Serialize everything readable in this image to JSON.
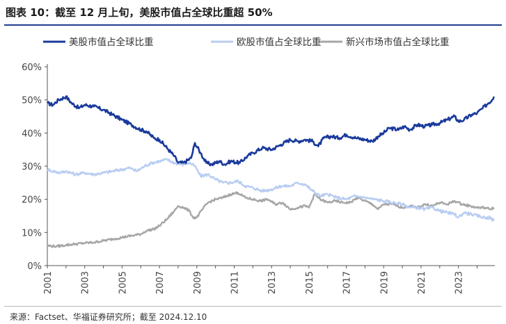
{
  "header": {
    "title": "图表 10：截至 12 月上旬，美股市值占全球比重超 50%"
  },
  "footer": {
    "source": "来源：Factset、华福证券研究所；截至 2024.12.10"
  },
  "colors": {
    "us": "#1a3a9c",
    "eu": "#b9cdf2",
    "em": "#a6a6a6",
    "accent": "#1f3b8f"
  },
  "chart_data": {
    "type": "line",
    "title": "",
    "xlabel": "",
    "ylabel": "",
    "xlim": [
      2001.0,
      2024.95
    ],
    "ylim": [
      0,
      60
    ],
    "y_ticks": [
      "0%",
      "10%",
      "20%",
      "30%",
      "40%",
      "50%",
      "60%"
    ],
    "x_ticks": [
      "2001",
      "2003",
      "2005",
      "2007",
      "2009",
      "2011",
      "2013",
      "2015",
      "2017",
      "2019",
      "2021",
      "2023"
    ],
    "grid": false,
    "legend_position": "top",
    "series": [
      {
        "name": "美股市值占全球比重",
        "color": "#1a3a9c",
        "points": [
          [
            2001.0,
            49
          ],
          [
            2001.3,
            48.5
          ],
          [
            2001.6,
            50
          ],
          [
            2002.0,
            51
          ],
          [
            2002.3,
            49
          ],
          [
            2002.7,
            47.5
          ],
          [
            2003.0,
            48.5
          ],
          [
            2003.5,
            48
          ],
          [
            2004.0,
            47
          ],
          [
            2004.5,
            45.5
          ],
          [
            2005.0,
            44
          ],
          [
            2005.5,
            42.5
          ],
          [
            2006.0,
            41
          ],
          [
            2006.3,
            40.5
          ],
          [
            2006.7,
            38.5
          ],
          [
            2007.0,
            38
          ],
          [
            2007.4,
            35.5
          ],
          [
            2007.8,
            33
          ],
          [
            2008.0,
            31
          ],
          [
            2008.3,
            31
          ],
          [
            2008.7,
            32.5
          ],
          [
            2008.9,
            37
          ],
          [
            2009.2,
            34
          ],
          [
            2009.5,
            31
          ],
          [
            2009.8,
            30.5
          ],
          [
            2010.2,
            31.5
          ],
          [
            2010.5,
            30.5
          ],
          [
            2010.8,
            31.5
          ],
          [
            2011.3,
            31
          ],
          [
            2011.7,
            33
          ],
          [
            2012.0,
            34
          ],
          [
            2012.5,
            35.5
          ],
          [
            2013.0,
            35
          ],
          [
            2013.5,
            36.5
          ],
          [
            2014.0,
            38
          ],
          [
            2014.4,
            37.5
          ],
          [
            2014.8,
            38
          ],
          [
            2015.2,
            37.5
          ],
          [
            2015.5,
            36
          ],
          [
            2015.8,
            38.5
          ],
          [
            2016.2,
            39
          ],
          [
            2016.6,
            38.5
          ],
          [
            2017.0,
            39.5
          ],
          [
            2017.5,
            38.5
          ],
          [
            2018.0,
            38
          ],
          [
            2018.4,
            37.5
          ],
          [
            2018.7,
            39
          ],
          [
            2019.0,
            40
          ],
          [
            2019.3,
            41.5
          ],
          [
            2019.8,
            41
          ],
          [
            2020.1,
            42
          ],
          [
            2020.4,
            41
          ],
          [
            2020.8,
            42.5
          ],
          [
            2021.2,
            42
          ],
          [
            2021.6,
            42.5
          ],
          [
            2022.0,
            43
          ],
          [
            2022.4,
            44
          ],
          [
            2022.8,
            45
          ],
          [
            2023.0,
            43.5
          ],
          [
            2023.3,
            44
          ],
          [
            2023.7,
            45.5
          ],
          [
            2024.0,
            46
          ],
          [
            2024.3,
            47.5
          ],
          [
            2024.6,
            49
          ],
          [
            2024.8,
            50
          ],
          [
            2024.9,
            51
          ]
        ]
      },
      {
        "name": "欧股市值占全球比重",
        "color": "#b9cdf2",
        "points": [
          [
            2001.0,
            29
          ],
          [
            2001.3,
            28.5
          ],
          [
            2001.7,
            28
          ],
          [
            2002.0,
            28.5
          ],
          [
            2002.5,
            27.5
          ],
          [
            2003.0,
            28
          ],
          [
            2003.5,
            27.5
          ],
          [
            2004.0,
            28
          ],
          [
            2004.5,
            28.5
          ],
          [
            2005.0,
            29
          ],
          [
            2005.4,
            29.5
          ],
          [
            2005.8,
            28.5
          ],
          [
            2006.2,
            30
          ],
          [
            2006.6,
            31
          ],
          [
            2007.0,
            31.5
          ],
          [
            2007.4,
            32
          ],
          [
            2007.8,
            31
          ],
          [
            2008.2,
            30.5
          ],
          [
            2008.6,
            31
          ],
          [
            2008.9,
            30
          ],
          [
            2009.2,
            27
          ],
          [
            2009.6,
            27.5
          ],
          [
            2010.0,
            26
          ],
          [
            2010.4,
            25
          ],
          [
            2010.8,
            25
          ],
          [
            2011.2,
            25.5
          ],
          [
            2011.6,
            24
          ],
          [
            2012.0,
            23.5
          ],
          [
            2012.5,
            22.5
          ],
          [
            2013.0,
            23
          ],
          [
            2013.5,
            24
          ],
          [
            2014.0,
            24
          ],
          [
            2014.4,
            25
          ],
          [
            2014.8,
            24.5
          ],
          [
            2015.2,
            22.5
          ],
          [
            2015.6,
            21
          ],
          [
            2016.0,
            21.5
          ],
          [
            2016.5,
            20.5
          ],
          [
            2017.0,
            20
          ],
          [
            2017.5,
            21
          ],
          [
            2018.0,
            20.5
          ],
          [
            2018.5,
            20
          ],
          [
            2019.0,
            19.5
          ],
          [
            2019.5,
            19
          ],
          [
            2020.0,
            18.5
          ],
          [
            2020.4,
            17.5
          ],
          [
            2020.8,
            17.5
          ],
          [
            2021.2,
            17
          ],
          [
            2021.6,
            17.5
          ],
          [
            2022.0,
            16.5
          ],
          [
            2022.4,
            16
          ],
          [
            2022.8,
            15.5
          ],
          [
            2023.0,
            14.5
          ],
          [
            2023.3,
            16
          ],
          [
            2023.7,
            15.5
          ],
          [
            2024.0,
            15
          ],
          [
            2024.4,
            14.5
          ],
          [
            2024.7,
            14.5
          ],
          [
            2024.9,
            13.5
          ]
        ]
      },
      {
        "name": "新兴市场市值占全球比重",
        "color": "#a6a6a6",
        "points": [
          [
            2001.0,
            6
          ],
          [
            2001.5,
            5.8
          ],
          [
            2002.0,
            6.2
          ],
          [
            2002.5,
            6.5
          ],
          [
            2003.0,
            6.8
          ],
          [
            2003.5,
            7
          ],
          [
            2004.0,
            7.5
          ],
          [
            2004.5,
            8
          ],
          [
            2005.0,
            8.5
          ],
          [
            2005.5,
            9
          ],
          [
            2006.0,
            9.5
          ],
          [
            2006.3,
            10.5
          ],
          [
            2006.7,
            11
          ],
          [
            2007.0,
            12
          ],
          [
            2007.4,
            14
          ],
          [
            2007.8,
            16.5
          ],
          [
            2008.0,
            18
          ],
          [
            2008.3,
            17.5
          ],
          [
            2008.6,
            16.5
          ],
          [
            2008.8,
            14.5
          ],
          [
            2009.0,
            14.5
          ],
          [
            2009.3,
            17
          ],
          [
            2009.6,
            19
          ],
          [
            2010.0,
            20
          ],
          [
            2010.4,
            20.5
          ],
          [
            2010.8,
            21.5
          ],
          [
            2011.2,
            22
          ],
          [
            2011.6,
            20.5
          ],
          [
            2012.0,
            20
          ],
          [
            2012.4,
            19.5
          ],
          [
            2012.8,
            20
          ],
          [
            2013.2,
            18.5
          ],
          [
            2013.6,
            19
          ],
          [
            2014.0,
            17
          ],
          [
            2014.4,
            17.5
          ],
          [
            2014.8,
            18
          ],
          [
            2015.0,
            17.5
          ],
          [
            2015.3,
            21.5
          ],
          [
            2015.6,
            20
          ],
          [
            2016.0,
            19
          ],
          [
            2016.4,
            19.5
          ],
          [
            2016.8,
            19
          ],
          [
            2017.2,
            19
          ],
          [
            2017.6,
            20.5
          ],
          [
            2018.0,
            19.5
          ],
          [
            2018.4,
            18.5
          ],
          [
            2018.7,
            17
          ],
          [
            2019.0,
            18.5
          ],
          [
            2019.5,
            18.5
          ],
          [
            2020.0,
            17.5
          ],
          [
            2020.4,
            18
          ],
          [
            2020.8,
            17.5
          ],
          [
            2021.2,
            18.5
          ],
          [
            2021.6,
            18
          ],
          [
            2022.0,
            19
          ],
          [
            2022.4,
            18.5
          ],
          [
            2022.8,
            19.5
          ],
          [
            2023.2,
            18.5
          ],
          [
            2023.6,
            18
          ],
          [
            2024.0,
            17.5
          ],
          [
            2024.4,
            17.5
          ],
          [
            2024.7,
            17
          ],
          [
            2024.9,
            17.5
          ]
        ]
      }
    ]
  }
}
